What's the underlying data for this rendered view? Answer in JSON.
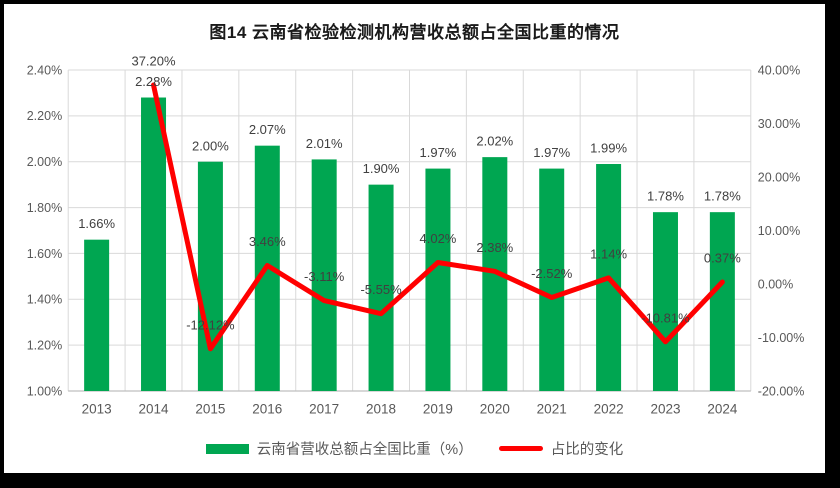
{
  "frame": {
    "border_color": "#000000",
    "background_color": "#ffffff"
  },
  "title": "图14  云南省检验检测机构营收总额占全国比重的情况",
  "legend": {
    "bar_series_label": "云南省营收总额占全国比重（%）",
    "line_series_label": "占比的变化"
  },
  "chart_data": {
    "type": "combo",
    "title": "图14  云南省检验检测机构营收总额占全国比重的情况",
    "categories": [
      "2013",
      "2014",
      "2015",
      "2016",
      "2017",
      "2018",
      "2019",
      "2020",
      "2021",
      "2022",
      "2023",
      "2024"
    ],
    "series": [
      {
        "name": "云南省营收总额占全国比重（%）",
        "type": "bar",
        "axis": "left",
        "color": "#00A651",
        "values": [
          1.66,
          2.28,
          2.0,
          2.07,
          2.01,
          1.9,
          1.97,
          2.02,
          1.97,
          1.99,
          1.78,
          1.78
        ],
        "labels": [
          "1.66%",
          "2.28%",
          "2.00%",
          "2.07%",
          "2.01%",
          "1.90%",
          "1.97%",
          "2.02%",
          "1.97%",
          "1.99%",
          "1.78%",
          "1.78%"
        ]
      },
      {
        "name": "占比的变化",
        "type": "line",
        "axis": "right",
        "color": "#FF0000",
        "values": [
          null,
          37.2,
          -12.12,
          3.46,
          -3.11,
          -5.55,
          4.02,
          2.38,
          -2.52,
          1.14,
          -10.81,
          0.37
        ],
        "labels": [
          "",
          "37.20%",
          "-12.12%",
          "3.46%",
          "-3.11%",
          "-5.55%",
          "4.02%",
          "2.38%",
          "-2.52%",
          "1.14%",
          "-10.81%",
          "0.37%"
        ]
      }
    ],
    "left_axis": {
      "min": 1.0,
      "max": 2.4,
      "ticks": [
        "2.40%",
        "2.20%",
        "2.00%",
        "1.80%",
        "1.60%",
        "1.40%",
        "1.20%",
        "1.00%"
      ]
    },
    "right_axis": {
      "min": -20,
      "max": 40,
      "ticks": [
        "40.00%",
        "30.00%",
        "20.00%",
        "10.00%",
        "0.00%",
        "-10.00%",
        "-20.00%"
      ]
    },
    "grid": "horizontal-and-vertical",
    "legend_position": "bottom",
    "layout_colors": {
      "gridline": "#D9D9D9",
      "axis_line": "#BFBFBF",
      "tick_text": "#595959",
      "data_label_text": "#404040",
      "title_text": "#1a1a1a"
    }
  }
}
